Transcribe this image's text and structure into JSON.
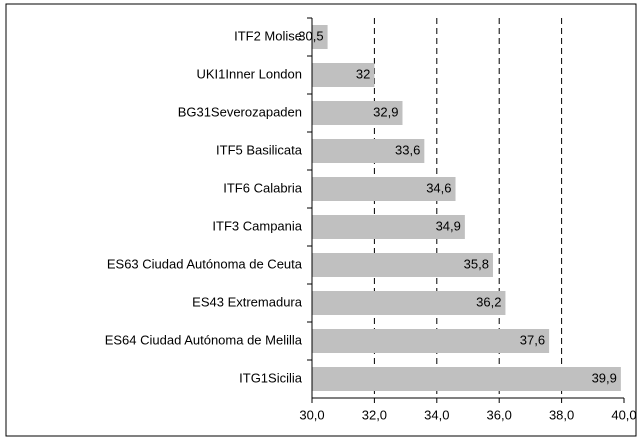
{
  "chart_data": {
    "type": "bar",
    "orientation": "horizontal",
    "categories": [
      "ITF2 Molise",
      "UKI1Inner London",
      "BG31Severozapaden",
      "ITF5 Basilicata",
      "ITF6 Calabria",
      "ITF3 Campania",
      "ES63 Ciudad Autónoma de Ceuta",
      "ES43 Extremadura",
      "ES64 Ciudad Autónoma de Melilla",
      "ITG1Sicilia"
    ],
    "values": [
      30.5,
      32,
      32.9,
      33.6,
      34.6,
      34.9,
      35.8,
      36.2,
      37.6,
      39.9
    ],
    "value_labels": [
      "30,5",
      "32",
      "32,9",
      "33,6",
      "34,6",
      "34,9",
      "35,8",
      "36,2",
      "37,6",
      "39,9"
    ],
    "color": "#c0c0c0",
    "xlim": [
      30,
      40
    ],
    "xticks": [
      {
        "value": 30,
        "label": "30,0"
      },
      {
        "value": 32,
        "label": "32,0"
      },
      {
        "value": 34,
        "label": "34,0"
      },
      {
        "value": 36,
        "label": "36,0"
      },
      {
        "value": 38,
        "label": "38,0"
      },
      {
        "value": 40,
        "label": "40,0"
      }
    ],
    "grid": true
  }
}
